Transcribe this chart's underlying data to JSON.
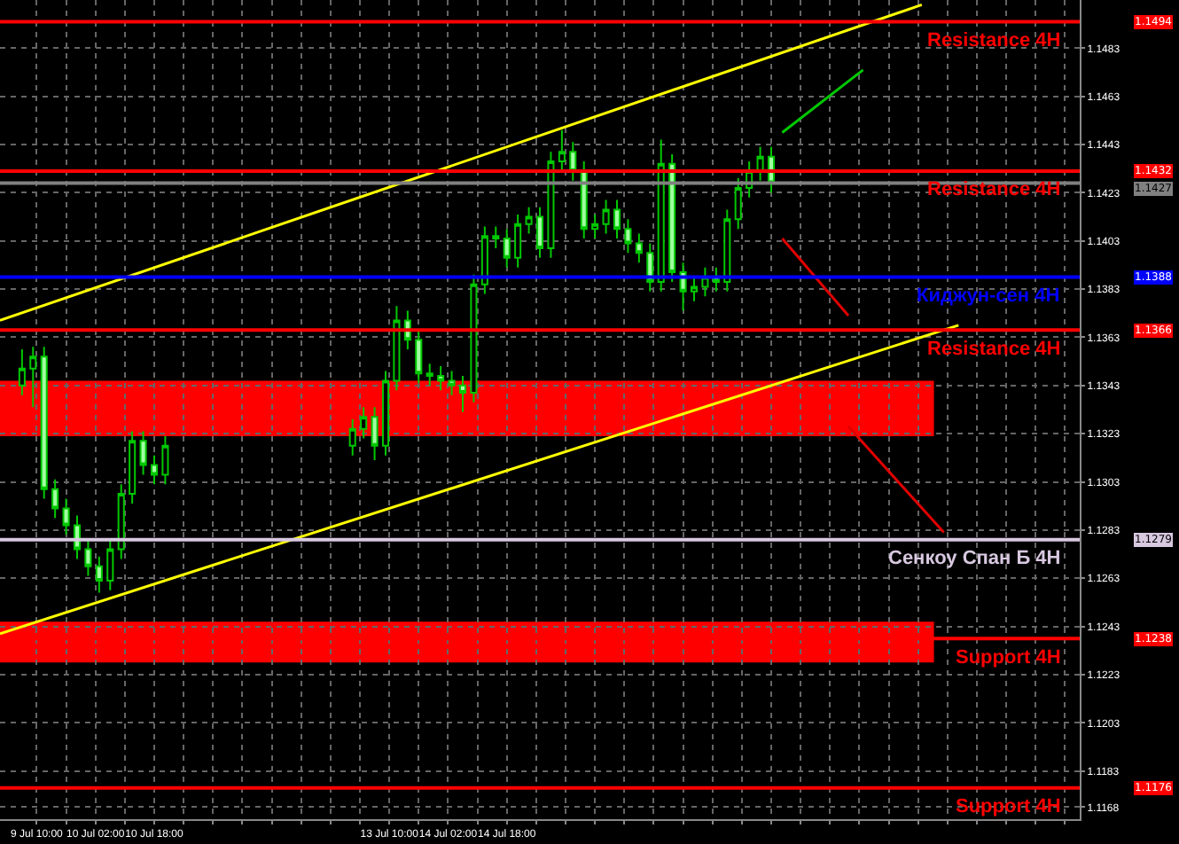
{
  "chart_data": {
    "type": "candlestick",
    "x": [
      "--07-09T06:00",
      "--07-09T09:00",
      "--07-09T12:00",
      "--07-09T15:00",
      "--07-09T18:00",
      "--07-09T21:00",
      "--07-10T00:00",
      "--07-10T03:00",
      "--07-10T06:00",
      "--07-10T09:00",
      "--07-10T12:00",
      "--07-10T15:00",
      "--07-10T18:00",
      "--07-10T21:00",
      "--07-13T00:00",
      "--07-13T03:00",
      "--07-13T06:00",
      "--07-13T09:00",
      "--07-13T12:00",
      "--07-13T15:00",
      "--07-13T18:00",
      "--07-13T21:00",
      "--07-14T00:00",
      "--07-14T03:00",
      "--07-14T06:00",
      "--07-14T09:00",
      "--07-14T12:00",
      "--07-14T15:00",
      "--07-14T18:00",
      "--07-14T21:00",
      "--07-15T00:00",
      "--07-15T03:00",
      "--07-15T06:00",
      "--07-15T09:00",
      "--07-15T12:00",
      "--07-15T15:00",
      "--07-15T18:00",
      "--07-15T21:00",
      "--07-16T00:00",
      "--07-16T03:00",
      "--07-16T06:00",
      "--07-16T09:00",
      "--07-16T12:00",
      "--07-16T15:00",
      "--07-16T18:00",
      "--07-16T21:00",
      "--07-17T00:00",
      "--07-17T03:00",
      "--07-17T06:00",
      "--07-17T09:00",
      "--07-17T12:00",
      "--07-17T15:00",
      "--07-17T18:00"
    ],
    "ohlc": [
      [
        1.1343,
        1.1358,
        1.1339,
        1.135
      ],
      [
        1.135,
        1.1359,
        1.1334,
        1.1355
      ],
      [
        1.1355,
        1.1359,
        1.1296,
        1.13
      ],
      [
        1.13,
        1.1304,
        1.1288,
        1.1292
      ],
      [
        1.1292,
        1.1296,
        1.1281,
        1.1285
      ],
      [
        1.1285,
        1.1289,
        1.1271,
        1.1275
      ],
      [
        1.1275,
        1.1279,
        1.1264,
        1.1268
      ],
      [
        1.1268,
        1.1272,
        1.1257,
        1.1262
      ],
      [
        1.1262,
        1.1279,
        1.1258,
        1.1275
      ],
      [
        1.1275,
        1.1302,
        1.1271,
        1.1298
      ],
      [
        1.1298,
        1.1324,
        1.1294,
        1.132
      ],
      [
        1.132,
        1.1324,
        1.1306,
        1.131
      ],
      [
        1.131,
        1.1314,
        1.1302,
        1.1306
      ],
      [
        1.1306,
        1.1322,
        1.1302,
        1.1318
      ],
      [
        1.1318,
        1.1329,
        1.1314,
        1.1325
      ],
      [
        1.1325,
        1.1334,
        1.1321,
        1.133
      ],
      [
        1.133,
        1.1334,
        1.1312,
        1.1318
      ],
      [
        1.1318,
        1.1349,
        1.1314,
        1.1345
      ],
      [
        1.1345,
        1.1376,
        1.1341,
        1.137
      ],
      [
        1.137,
        1.1374,
        1.1358,
        1.1362
      ],
      [
        1.1362,
        1.1366,
        1.1344,
        1.1348
      ],
      [
        1.1348,
        1.1352,
        1.1343,
        1.1347
      ],
      [
        1.1347,
        1.1351,
        1.1341,
        1.1345
      ],
      [
        1.1345,
        1.1349,
        1.1339,
        1.1343
      ],
      [
        1.1343,
        1.1347,
        1.1332,
        1.134
      ],
      [
        1.134,
        1.1389,
        1.1336,
        1.1385
      ],
      [
        1.1385,
        1.1409,
        1.1381,
        1.1405
      ],
      [
        1.1405,
        1.1409,
        1.14,
        1.1404
      ],
      [
        1.1404,
        1.1408,
        1.1392,
        1.1396
      ],
      [
        1.1396,
        1.1414,
        1.1392,
        1.141
      ],
      [
        1.141,
        1.1417,
        1.1406,
        1.1413
      ],
      [
        1.1413,
        1.1417,
        1.1396,
        1.14
      ],
      [
        1.14,
        1.144,
        1.1396,
        1.1436
      ],
      [
        1.1436,
        1.1449,
        1.1432,
        1.144
      ],
      [
        1.144,
        1.1444,
        1.1428,
        1.1432
      ],
      [
        1.1432,
        1.1436,
        1.1404,
        1.1408
      ],
      [
        1.1408,
        1.1414,
        1.1404,
        1.141
      ],
      [
        1.141,
        1.142,
        1.1406,
        1.1416
      ],
      [
        1.1416,
        1.142,
        1.1404,
        1.1408
      ],
      [
        1.1408,
        1.1412,
        1.1398,
        1.1402
      ],
      [
        1.1402,
        1.1406,
        1.1394,
        1.1398
      ],
      [
        1.1398,
        1.1402,
        1.1382,
        1.1386
      ],
      [
        1.1386,
        1.1445,
        1.1382,
        1.1435
      ],
      [
        1.1435,
        1.1439,
        1.1386,
        1.139
      ],
      [
        1.139,
        1.1394,
        1.1374,
        1.1382
      ],
      [
        1.1382,
        1.1388,
        1.1378,
        1.1384
      ],
      [
        1.1384,
        1.1392,
        1.138,
        1.1388
      ],
      [
        1.1388,
        1.1392,
        1.1382,
        1.1386
      ],
      [
        1.1386,
        1.1416,
        1.1382,
        1.1412
      ],
      [
        1.1412,
        1.1429,
        1.1408,
        1.1425
      ],
      [
        1.1425,
        1.1436,
        1.1421,
        1.1432
      ],
      [
        1.1432,
        1.1442,
        1.1428,
        1.1438
      ],
      [
        1.1438,
        1.1442,
        1.1423,
        1.1427
      ]
    ],
    "color": "#00c800",
    "series": [
      {
        "type": "line",
        "color": "#ffff00",
        "x": [
          "--07-09T00:00",
          "--07-19T11:00"
        ],
        "values": [
          1.137,
          1.1501
        ]
      },
      {
        "type": "line",
        "color": "#ffff00",
        "x": [
          "--07-09T00:00",
          "--07-19T21:00"
        ],
        "values": [
          1.124,
          1.1368
        ]
      },
      {
        "type": "line",
        "color": "#00c800",
        "x": [
          "--07-17T21:00",
          "--07-18T19:00"
        ],
        "values": [
          1.1448,
          1.1474
        ]
      },
      {
        "type": "line",
        "color": "#e00000",
        "x": [
          "--07-17T21:00",
          "--07-18T15:00"
        ],
        "values": [
          1.1404,
          1.1372
        ]
      },
      {
        "type": "line",
        "color": "#e00000",
        "x": [
          "--07-18T15:00",
          "--07-19T17:00"
        ],
        "values": [
          1.1326,
          1.1282
        ]
      }
    ],
    "ref_lines": [
      {
        "axis": "y",
        "value": 1.1494,
        "label": "Resistance 4H",
        "color": "#ff0000"
      },
      {
        "axis": "y",
        "value": 1.1432,
        "label": "Resistance 4H",
        "color": "#ff0000"
      },
      {
        "axis": "y",
        "value": 1.1427,
        "label": null,
        "color": "#808080"
      },
      {
        "axis": "y",
        "value": 1.1388,
        "label": "Киджун-сен 4H",
        "color": "#0000ff"
      },
      {
        "axis": "y",
        "value": 1.1366,
        "label": "Resistance 4H",
        "color": "#ff0000"
      },
      {
        "axis": "y",
        "value": 1.1279,
        "label": "Сенкоу Спан Б 4H",
        "color": "#d8c8e0"
      },
      {
        "axis": "y",
        "value": 1.1238,
        "label": "Support 4H",
        "color": "#ff0000"
      },
      {
        "axis": "y",
        "value": 1.1176,
        "label": "Support 4H",
        "color": "#ff0000"
      }
    ],
    "annotations": [
      "1.1494",
      "1.1432",
      "1.1427",
      "1.1388",
      "1.1366",
      "1.1279",
      "1.1238",
      "1.1176"
    ],
    "bands": [
      {
        "axis": "y",
        "from": 1.1322,
        "to": 1.1345,
        "label": null,
        "color": "#ff0000"
      },
      {
        "axis": "y",
        "from": 1.1228,
        "to": 1.1245,
        "label": null,
        "color": "#ff0000"
      }
    ],
    "xlim": [
      "--07-09T00:00",
      "--07-21T06:00"
    ],
    "xticks": [
      {
        "value": "--07-09T10:00",
        "label": "9 Jul 10:00"
      },
      {
        "value": "--07-09T18:00",
        "label": null
      },
      {
        "value": "--07-10T02:00",
        "label": "10 Jul 02:00"
      },
      {
        "value": "--07-10T10:00",
        "label": null
      },
      {
        "value": "--07-10T18:00",
        "label": "10 Jul 18:00"
      },
      {
        "value": "--07-11T02:00",
        "label": null
      },
      {
        "value": "--07-11T10:00",
        "label": null
      },
      {
        "value": "--07-11T18:00",
        "label": null
      },
      {
        "value": "--07-12T02:00",
        "label": null
      },
      {
        "value": "--07-12T10:00",
        "label": null
      },
      {
        "value": "--07-12T18:00",
        "label": null
      },
      {
        "value": "--07-13T02:00",
        "label": null
      },
      {
        "value": "--07-13T10:00",
        "label": "13 Jul 10:00"
      },
      {
        "value": "--07-13T18:00",
        "label": null
      },
      {
        "value": "--07-14T02:00",
        "label": "14 Jul 02:00"
      },
      {
        "value": "--07-14T10:00",
        "label": null
      },
      {
        "value": "--07-14T18:00",
        "label": "14 Jul 18:00"
      },
      {
        "value": "--07-15T02:00",
        "label": null
      },
      {
        "value": "--07-15T10:00",
        "label": null
      },
      {
        "value": "--07-15T18:00",
        "label": null
      },
      {
        "value": "--07-16T02:00",
        "label": null
      },
      {
        "value": "--07-16T10:00",
        "label": null
      },
      {
        "value": "--07-16T18:00",
        "label": null
      },
      {
        "value": "--07-17T02:00",
        "label": null
      },
      {
        "value": "--07-17T10:00",
        "label": null
      },
      {
        "value": "--07-17T18:00",
        "label": null
      },
      {
        "value": "--07-18T02:00",
        "label": null
      },
      {
        "value": "--07-18T10:00",
        "label": null
      },
      {
        "value": "--07-18T18:00",
        "label": null
      },
      {
        "value": "--07-19T02:00",
        "label": null
      },
      {
        "value": "--07-19T10:00",
        "label": null
      },
      {
        "value": "--07-19T18:00",
        "label": null
      },
      {
        "value": "--07-20T02:00",
        "label": null
      },
      {
        "value": "--07-20T10:00",
        "label": null
      },
      {
        "value": "--07-20T18:00",
        "label": null
      },
      {
        "value": "--07-21T02:00",
        "label": null
      }
    ],
    "ylim": [
      1.1163,
      1.1503
    ],
    "yticks": [
      1.1483,
      1.1463,
      1.1443,
      1.1423,
      1.1403,
      1.1383,
      1.1363,
      1.1343,
      1.1323,
      1.1303,
      1.1283,
      1.1263,
      1.1243,
      1.1223,
      1.1203,
      1.1183,
      1.1168
    ],
    "grid": true
  }
}
